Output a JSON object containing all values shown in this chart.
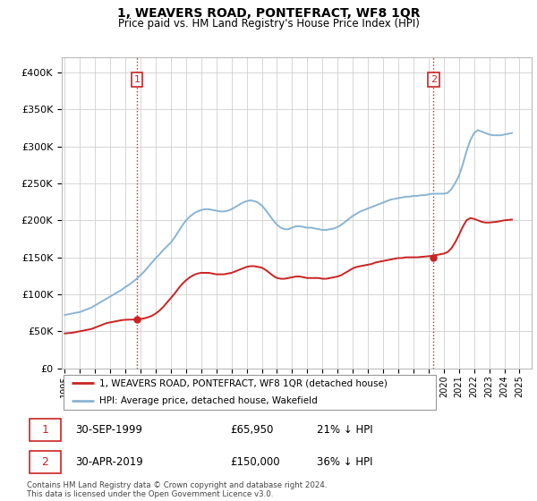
{
  "title": "1, WEAVERS ROAD, PONTEFRACT, WF8 1QR",
  "subtitle": "Price paid vs. HM Land Registry's House Price Index (HPI)",
  "ylabel_ticks": [
    "£0",
    "£50K",
    "£100K",
    "£150K",
    "£200K",
    "£250K",
    "£300K",
    "£350K",
    "£400K"
  ],
  "ytick_values": [
    0,
    50000,
    100000,
    150000,
    200000,
    250000,
    300000,
    350000,
    400000
  ],
  "ylim": [
    0,
    420000
  ],
  "xlim_start": 1994.8,
  "xlim_end": 2025.8,
  "xtick_years": [
    1995,
    1996,
    1997,
    1998,
    1999,
    2000,
    2001,
    2002,
    2003,
    2004,
    2005,
    2006,
    2007,
    2008,
    2009,
    2010,
    2011,
    2012,
    2013,
    2014,
    2015,
    2016,
    2017,
    2018,
    2019,
    2020,
    2021,
    2022,
    2023,
    2024,
    2025
  ],
  "hpi_color": "#8ab4d4",
  "price_color": "#cc2222",
  "vline_color": "#cc2222",
  "marker_color": "#cc2222",
  "annotation_box_color": "#cc2222",
  "grid_color": "#d0d0d0",
  "legend_label_red": "1, WEAVERS ROAD, PONTEFRACT, WF8 1QR (detached house)",
  "legend_label_blue": "HPI: Average price, detached house, Wakefield",
  "sale1_label": "1",
  "sale1_date": "30-SEP-1999",
  "sale1_price": "£65,950",
  "sale1_hpi": "21% ↓ HPI",
  "sale1_x": 1999.75,
  "sale1_y": 65950,
  "sale2_label": "2",
  "sale2_date": "30-APR-2019",
  "sale2_price": "£150,000",
  "sale2_hpi": "36% ↓ HPI",
  "sale2_x": 2019.33,
  "sale2_y": 150000,
  "footer": "Contains HM Land Registry data © Crown copyright and database right 2024.\nThis data is licensed under the Open Government Licence v3.0.",
  "hpi_data_x": [
    1995.0,
    1995.25,
    1995.5,
    1995.75,
    1996.0,
    1996.25,
    1996.5,
    1996.75,
    1997.0,
    1997.25,
    1997.5,
    1997.75,
    1998.0,
    1998.25,
    1998.5,
    1998.75,
    1999.0,
    1999.25,
    1999.5,
    1999.75,
    2000.0,
    2000.25,
    2000.5,
    2000.75,
    2001.0,
    2001.25,
    2001.5,
    2001.75,
    2002.0,
    2002.25,
    2002.5,
    2002.75,
    2003.0,
    2003.25,
    2003.5,
    2003.75,
    2004.0,
    2004.25,
    2004.5,
    2004.75,
    2005.0,
    2005.25,
    2005.5,
    2005.75,
    2006.0,
    2006.25,
    2006.5,
    2006.75,
    2007.0,
    2007.25,
    2007.5,
    2007.75,
    2008.0,
    2008.25,
    2008.5,
    2008.75,
    2009.0,
    2009.25,
    2009.5,
    2009.75,
    2010.0,
    2010.25,
    2010.5,
    2010.75,
    2011.0,
    2011.25,
    2011.5,
    2011.75,
    2012.0,
    2012.25,
    2012.5,
    2012.75,
    2013.0,
    2013.25,
    2013.5,
    2013.75,
    2014.0,
    2014.25,
    2014.5,
    2014.75,
    2015.0,
    2015.25,
    2015.5,
    2015.75,
    2016.0,
    2016.25,
    2016.5,
    2016.75,
    2017.0,
    2017.25,
    2017.5,
    2017.75,
    2018.0,
    2018.25,
    2018.5,
    2018.75,
    2019.0,
    2019.25,
    2019.5,
    2019.75,
    2020.0,
    2020.25,
    2020.5,
    2020.75,
    2021.0,
    2021.25,
    2021.5,
    2021.75,
    2022.0,
    2022.25,
    2022.5,
    2022.75,
    2023.0,
    2023.25,
    2023.5,
    2023.75,
    2024.0,
    2024.25,
    2024.5
  ],
  "hpi_data_y": [
    72000,
    73000,
    74000,
    75000,
    76000,
    78000,
    80000,
    82000,
    85000,
    88000,
    91000,
    94000,
    97000,
    100000,
    103000,
    106000,
    110000,
    113000,
    117000,
    121000,
    126000,
    131000,
    137000,
    143000,
    149000,
    154000,
    160000,
    165000,
    170000,
    177000,
    185000,
    193000,
    200000,
    205000,
    209000,
    212000,
    214000,
    215000,
    215000,
    214000,
    213000,
    212000,
    212000,
    213000,
    215000,
    218000,
    221000,
    224000,
    226000,
    227000,
    226000,
    224000,
    220000,
    214000,
    207000,
    200000,
    194000,
    190000,
    188000,
    188000,
    190000,
    192000,
    192000,
    191000,
    190000,
    190000,
    189000,
    188000,
    187000,
    187000,
    188000,
    189000,
    191000,
    194000,
    198000,
    202000,
    206000,
    209000,
    212000,
    214000,
    216000,
    218000,
    220000,
    222000,
    224000,
    226000,
    228000,
    229000,
    230000,
    231000,
    232000,
    232000,
    233000,
    233000,
    234000,
    234000,
    235000,
    236000,
    236000,
    236000,
    236000,
    237000,
    242000,
    250000,
    260000,
    275000,
    293000,
    308000,
    318000,
    322000,
    320000,
    318000,
    316000,
    315000,
    315000,
    315000,
    316000,
    317000,
    318000
  ],
  "price_data_x": [
    1995.0,
    1995.25,
    1995.5,
    1995.75,
    1996.0,
    1996.25,
    1996.5,
    1996.75,
    1997.0,
    1997.25,
    1997.5,
    1997.75,
    1998.0,
    1998.25,
    1998.5,
    1998.75,
    1999.0,
    1999.25,
    1999.5,
    1999.75,
    2000.0,
    2000.25,
    2000.5,
    2000.75,
    2001.0,
    2001.25,
    2001.5,
    2001.75,
    2002.0,
    2002.25,
    2002.5,
    2002.75,
    2003.0,
    2003.25,
    2003.5,
    2003.75,
    2004.0,
    2004.25,
    2004.5,
    2004.75,
    2005.0,
    2005.25,
    2005.5,
    2005.75,
    2006.0,
    2006.25,
    2006.5,
    2006.75,
    2007.0,
    2007.25,
    2007.5,
    2007.75,
    2008.0,
    2008.25,
    2008.5,
    2008.75,
    2009.0,
    2009.25,
    2009.5,
    2009.75,
    2010.0,
    2010.25,
    2010.5,
    2010.75,
    2011.0,
    2011.25,
    2011.5,
    2011.75,
    2012.0,
    2012.25,
    2012.5,
    2012.75,
    2013.0,
    2013.25,
    2013.5,
    2013.75,
    2014.0,
    2014.25,
    2014.5,
    2014.75,
    2015.0,
    2015.25,
    2015.5,
    2015.75,
    2016.0,
    2016.25,
    2016.5,
    2016.75,
    2017.0,
    2017.25,
    2017.5,
    2017.75,
    2018.0,
    2018.25,
    2018.5,
    2018.75,
    2019.0,
    2019.25,
    2019.5,
    2019.75,
    2020.0,
    2020.25,
    2020.5,
    2020.75,
    2021.0,
    2021.25,
    2021.5,
    2021.75,
    2022.0,
    2022.25,
    2022.5,
    2022.75,
    2023.0,
    2023.25,
    2023.5,
    2023.75,
    2024.0,
    2024.25,
    2024.5
  ],
  "price_data_y": [
    47000,
    47500,
    48000,
    49000,
    50000,
    51000,
    52000,
    53000,
    55000,
    57000,
    59000,
    61000,
    62000,
    63000,
    64000,
    65000,
    65500,
    65700,
    65800,
    65950,
    66500,
    67500,
    69000,
    71000,
    74000,
    78000,
    83000,
    89000,
    95000,
    101000,
    108000,
    114000,
    119000,
    123000,
    126000,
    128000,
    129000,
    129000,
    129000,
    128000,
    127000,
    127000,
    127000,
    128000,
    129000,
    131000,
    133000,
    135000,
    137000,
    138000,
    138000,
    137000,
    136000,
    133000,
    129000,
    125000,
    122000,
    121000,
    121000,
    122000,
    123000,
    124000,
    124000,
    123000,
    122000,
    122000,
    122000,
    122000,
    121000,
    121000,
    122000,
    123000,
    124000,
    126000,
    129000,
    132000,
    135000,
    137000,
    138000,
    139000,
    140000,
    141000,
    143000,
    144000,
    145000,
    146000,
    147000,
    148000,
    149000,
    149000,
    150000,
    150000,
    150000,
    150000,
    150500,
    151000,
    151500,
    152000,
    153000,
    154000,
    155000,
    157000,
    162000,
    170000,
    180000,
    191000,
    200000,
    203000,
    202000,
    200000,
    198000,
    197000,
    197000,
    197500,
    198000,
    199000,
    200000,
    200500,
    201000
  ]
}
